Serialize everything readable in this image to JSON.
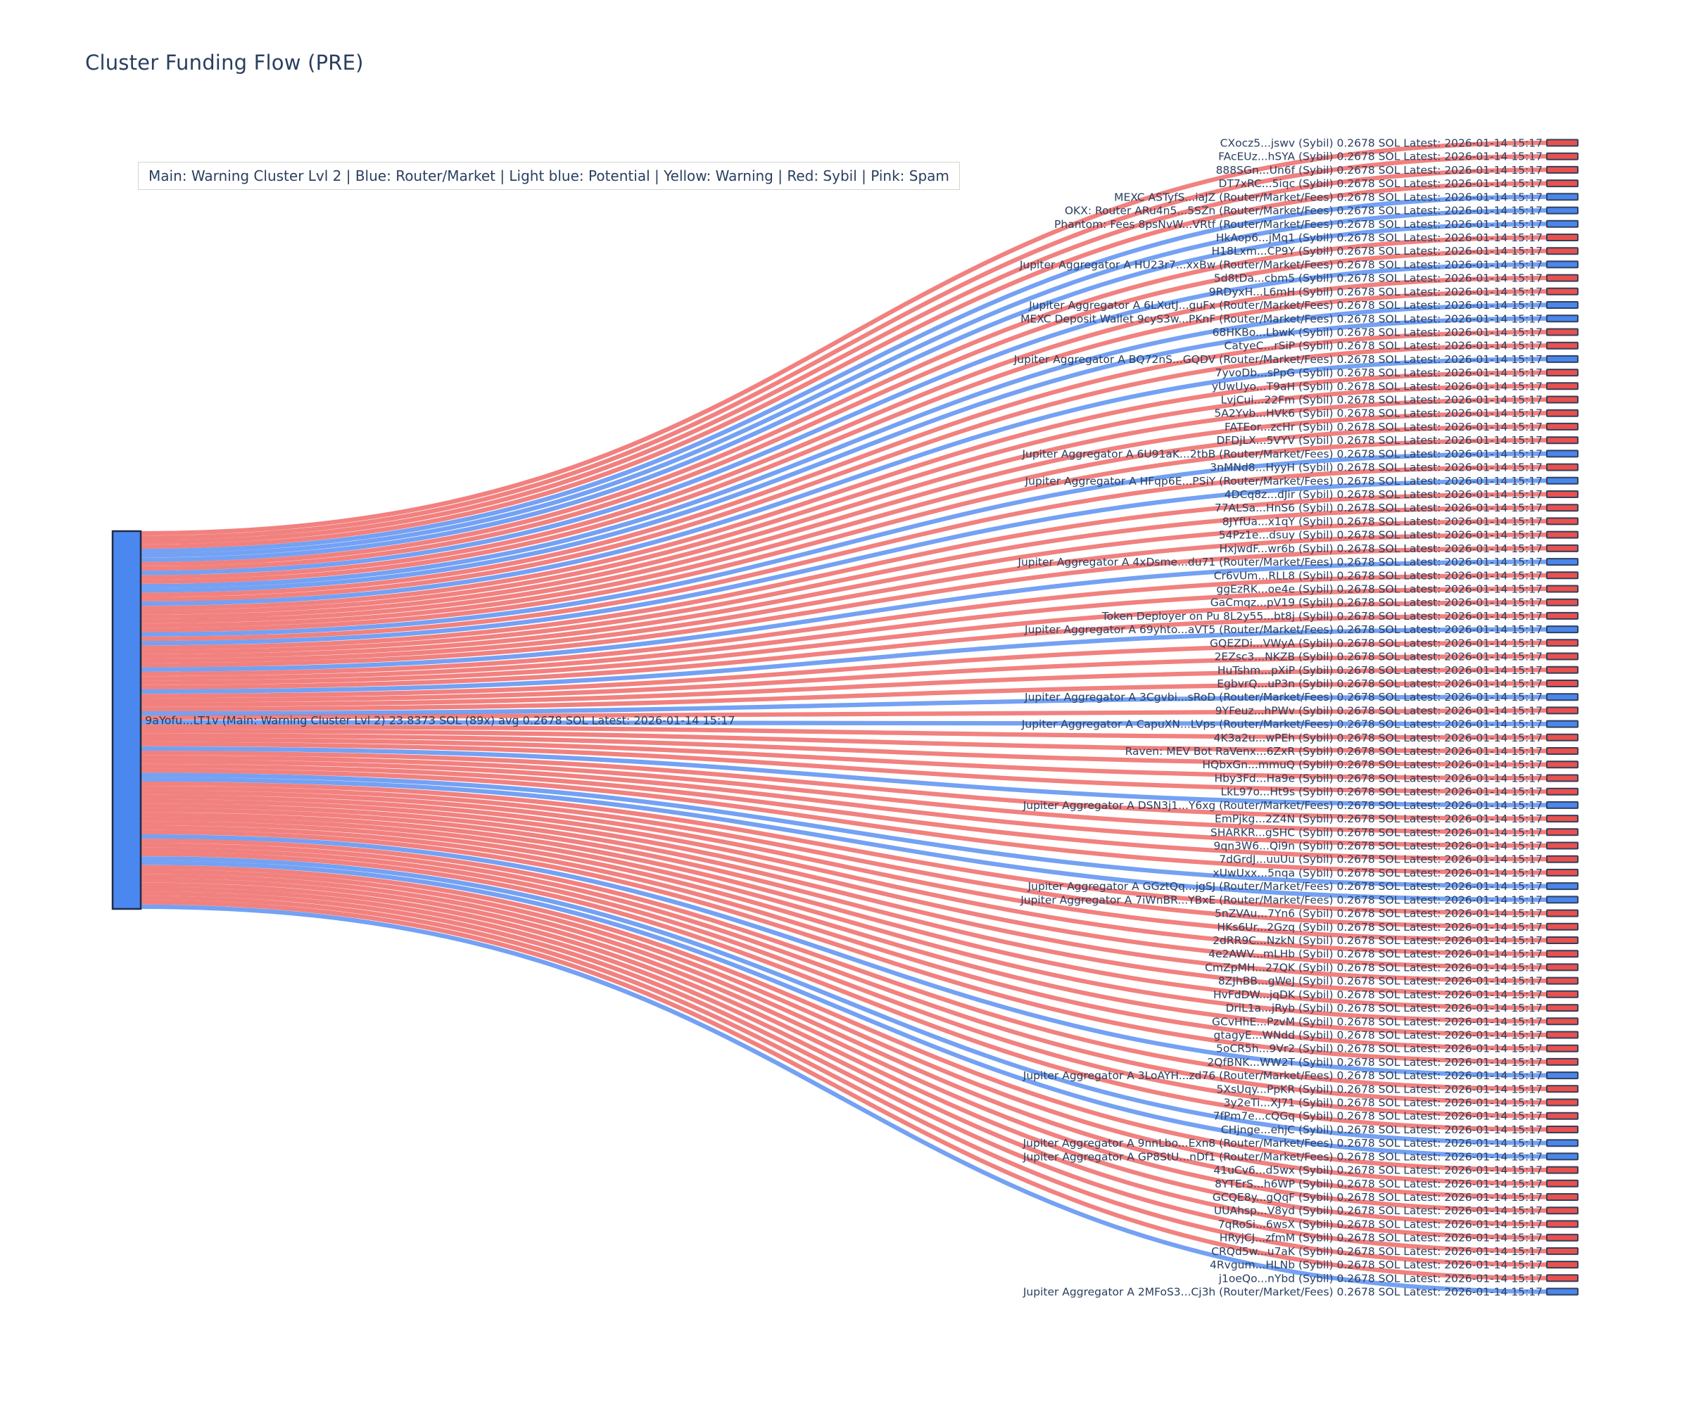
{
  "title": "Cluster Funding Flow (PRE)",
  "legend": "Main: Warning Cluster Lvl 2  |  Blue: Router/Market | Light blue: Potential | Yellow: Warning | Red: Sybil | Pink: Spam",
  "colors": {
    "main_node": "#4a87ee",
    "node_border": "#32415c",
    "sybil_node": "#e9514e",
    "router_node": "#4a86ec",
    "sybil_link": "rgba(235,80,77,0.72)",
    "router_link": "rgba(77,135,240,0.78)",
    "label": "#2a3f5f"
  },
  "chart_data": {
    "type": "sankey",
    "title": "Cluster Funding Flow (PRE)",
    "legend_note": "Main: Warning Cluster Lvl 2  |  Blue: Router/Market | Light blue: Potential | Yellow: Warning | Red: Sybil | Pink: Spam",
    "amount_sol": "0.2678",
    "latest": "2026-01-14 15:17",
    "source": {
      "name": "9aYofu...LT1v",
      "type": "Main: Warning Cluster Lvl 2",
      "total_sol": "23.8373",
      "tx_count": "89x",
      "avg_sol": "0.2678",
      "category": "main"
    },
    "destinations": [
      {
        "name": "CXocz5...jswv",
        "type": "Sybil",
        "category": "sybil"
      },
      {
        "name": "FAcEUz...hSYA",
        "type": "Sybil",
        "category": "sybil"
      },
      {
        "name": "888SGn...Un6f",
        "type": "Sybil",
        "category": "sybil"
      },
      {
        "name": "DT7xRC...5iqc",
        "type": "Sybil",
        "category": "sybil"
      },
      {
        "name": "MEXC ASTyfS...iaJZ",
        "type": "Router/Market/Fees",
        "category": "router"
      },
      {
        "name": "OKX: Router ARu4n5...5SZn",
        "type": "Router/Market/Fees",
        "category": "router"
      },
      {
        "name": "Phantom: Fees 8psNvW...VRtf",
        "type": "Router/Market/Fees",
        "category": "router"
      },
      {
        "name": "HkAop6...jMq1",
        "type": "Sybil",
        "category": "sybil"
      },
      {
        "name": "H18Lxm...CP9Y",
        "type": "Sybil",
        "category": "sybil"
      },
      {
        "name": "Jupiter Aggregator A HU23r7...xxBw",
        "type": "Router/Market/Fees",
        "category": "router"
      },
      {
        "name": "5d8tDa...cbm5",
        "type": "Sybil",
        "category": "sybil"
      },
      {
        "name": "9RDyxH...L6mH",
        "type": "Sybil",
        "category": "sybil"
      },
      {
        "name": "Jupiter Aggregator A 6LXutJ...guFx",
        "type": "Router/Market/Fees",
        "category": "router"
      },
      {
        "name": "MEXC Deposit Wallet 9cyS3w...PKnF",
        "type": "Router/Market/Fees",
        "category": "router"
      },
      {
        "name": "68HKBo...LbwK",
        "type": "Sybil",
        "category": "sybil"
      },
      {
        "name": "CatyeC...rSiP",
        "type": "Sybil",
        "category": "sybil"
      },
      {
        "name": "Jupiter Aggregator A BQ72nS...GQDV",
        "type": "Router/Market/Fees",
        "category": "router"
      },
      {
        "name": "7yvoDb...sPpG",
        "type": "Sybil",
        "category": "sybil"
      },
      {
        "name": "yUwUyo...T9aH",
        "type": "Sybil",
        "category": "sybil"
      },
      {
        "name": "LvjCui...22Fm",
        "type": "Sybil",
        "category": "sybil"
      },
      {
        "name": "5A2Yvb...HVk6",
        "type": "Sybil",
        "category": "sybil"
      },
      {
        "name": "FATEor...zcHr",
        "type": "Sybil",
        "category": "sybil"
      },
      {
        "name": "DFDjLX...5VYV",
        "type": "Sybil",
        "category": "sybil"
      },
      {
        "name": "Jupiter Aggregator A 6U91aK...2tbB",
        "type": "Router/Market/Fees",
        "category": "router"
      },
      {
        "name": "3nMNd8...HyyH",
        "type": "Sybil",
        "category": "sybil"
      },
      {
        "name": "Jupiter Aggregator A HFqp6E...PSiY",
        "type": "Router/Market/Fees",
        "category": "router"
      },
      {
        "name": "4DCq8z...dJir",
        "type": "Sybil",
        "category": "sybil"
      },
      {
        "name": "77ALSa...HnS6",
        "type": "Sybil",
        "category": "sybil"
      },
      {
        "name": "8JYfUa...x1qY",
        "type": "Sybil",
        "category": "sybil"
      },
      {
        "name": "54Pz1e...dsuy",
        "type": "Sybil",
        "category": "sybil"
      },
      {
        "name": "HxjwdF...wr6b",
        "type": "Sybil",
        "category": "sybil"
      },
      {
        "name": "Jupiter Aggregator A 4xDsme...du71",
        "type": "Router/Market/Fees",
        "category": "router"
      },
      {
        "name": "Cr6vUm...RLL8",
        "type": "Sybil",
        "category": "sybil"
      },
      {
        "name": "ggEzRK...oe4e",
        "type": "Sybil",
        "category": "sybil"
      },
      {
        "name": "GaCmqz...pV19",
        "type": "Sybil",
        "category": "sybil"
      },
      {
        "name": "Token Deployer on Pu 8L2y55...bt8j",
        "type": "Sybil",
        "category": "sybil"
      },
      {
        "name": "Jupiter Aggregator A 69yhto...aVT5",
        "type": "Router/Market/Fees",
        "category": "router"
      },
      {
        "name": "GQEZDi...VWyA",
        "type": "Sybil",
        "category": "sybil"
      },
      {
        "name": "2EZsc3...NKZB",
        "type": "Sybil",
        "category": "sybil"
      },
      {
        "name": "HuTshm...pXiP",
        "type": "Sybil",
        "category": "sybil"
      },
      {
        "name": "EgbvrQ...uP3n",
        "type": "Sybil",
        "category": "sybil"
      },
      {
        "name": "Jupiter Aggregator A 3Cgvbi...sRoD",
        "type": "Router/Market/Fees",
        "category": "router"
      },
      {
        "name": "9YFeuz...hPWv",
        "type": "Sybil",
        "category": "sybil"
      },
      {
        "name": "Jupiter Aggregator A CapuXN...LVps",
        "type": "Router/Market/Fees",
        "category": "router"
      },
      {
        "name": "4K3a2u...wPEh",
        "type": "Sybil",
        "category": "sybil"
      },
      {
        "name": "Raven: MEV Bot RaVenx...6ZxR",
        "type": "Sybil",
        "category": "sybil"
      },
      {
        "name": "HQbxGn...mmuQ",
        "type": "Sybil",
        "category": "sybil"
      },
      {
        "name": "Hby3Fd...Ha9e",
        "type": "Sybil",
        "category": "sybil"
      },
      {
        "name": "LkL97o...Ht9s",
        "type": "Sybil",
        "category": "sybil"
      },
      {
        "name": "Jupiter Aggregator A DSN3j1...Y6xg",
        "type": "Router/Market/Fees",
        "category": "router"
      },
      {
        "name": "EmPjkg...2Z4N",
        "type": "Sybil",
        "category": "sybil"
      },
      {
        "name": "SHARKR...gSHC",
        "type": "Sybil",
        "category": "sybil"
      },
      {
        "name": "9qn3W6...Qi9n",
        "type": "Sybil",
        "category": "sybil"
      },
      {
        "name": "7dGrdJ...uuUu",
        "type": "Sybil",
        "category": "sybil"
      },
      {
        "name": "xUwUxx...5nqa",
        "type": "Sybil",
        "category": "sybil"
      },
      {
        "name": "Jupiter Aggregator A GGztQq...jgSJ",
        "type": "Router/Market/Fees",
        "category": "router"
      },
      {
        "name": "Jupiter Aggregator A 7iWnBR...YBxE",
        "type": "Router/Market/Fees",
        "category": "router"
      },
      {
        "name": "5nZVAu...7Yn6",
        "type": "Sybil",
        "category": "sybil"
      },
      {
        "name": "HKs6Ur...2Gzq",
        "type": "Sybil",
        "category": "sybil"
      },
      {
        "name": "2dRR9C...NzkN",
        "type": "Sybil",
        "category": "sybil"
      },
      {
        "name": "4e2AWV...mLHb",
        "type": "Sybil",
        "category": "sybil"
      },
      {
        "name": "CmZpMH...27QK",
        "type": "Sybil",
        "category": "sybil"
      },
      {
        "name": "8ZJhBB...gWeJ",
        "type": "Sybil",
        "category": "sybil"
      },
      {
        "name": "HvFdDW...jqDK",
        "type": "Sybil",
        "category": "sybil"
      },
      {
        "name": "DriL1a...jRyb",
        "type": "Sybil",
        "category": "sybil"
      },
      {
        "name": "GCvHhE...PzvM",
        "type": "Sybil",
        "category": "sybil"
      },
      {
        "name": "gtagyE...WNdd",
        "type": "Sybil",
        "category": "sybil"
      },
      {
        "name": "5oCR5h...9Vr2",
        "type": "Sybil",
        "category": "sybil"
      },
      {
        "name": "2QfBNK...WW2T",
        "type": "Sybil",
        "category": "sybil"
      },
      {
        "name": "Jupiter Aggregator A 3LoAYH...zd76",
        "type": "Router/Market/Fees",
        "category": "router"
      },
      {
        "name": "5XsUqy...PpKR",
        "type": "Sybil",
        "category": "sybil"
      },
      {
        "name": "3y2eTi...XJ71",
        "type": "Sybil",
        "category": "sybil"
      },
      {
        "name": "7fPm7e...cQGq",
        "type": "Sybil",
        "category": "sybil"
      },
      {
        "name": "CHjnge...ehjC",
        "type": "Sybil",
        "category": "sybil"
      },
      {
        "name": "Jupiter Aggregator A 9nnLbo...Exn8",
        "type": "Router/Market/Fees",
        "category": "router"
      },
      {
        "name": "Jupiter Aggregator A GP8StU...nDf1",
        "type": "Router/Market/Fees",
        "category": "router"
      },
      {
        "name": "41uCv6...d5wx",
        "type": "Sybil",
        "category": "sybil"
      },
      {
        "name": "8YTErS...h6WP",
        "type": "Sybil",
        "category": "sybil"
      },
      {
        "name": "GCQE8y...gQqF",
        "type": "Sybil",
        "category": "sybil"
      },
      {
        "name": "UUAhsp...V8yd",
        "type": "Sybil",
        "category": "sybil"
      },
      {
        "name": "7qRoSi...6wsX",
        "type": "Sybil",
        "category": "sybil"
      },
      {
        "name": "HRyjCJ...zfmM",
        "type": "Sybil",
        "category": "sybil"
      },
      {
        "name": "CRQd5w...u7aK",
        "type": "Sybil",
        "category": "sybil"
      },
      {
        "name": "4Rvgum...HLNb",
        "type": "Sybil",
        "category": "sybil"
      },
      {
        "name": "j1oeQo...nYbd",
        "type": "Sybil",
        "category": "sybil"
      },
      {
        "name": "Jupiter Aggregator A 2MFoS3...Cj3h",
        "type": "Router/Market/Fees",
        "category": "router"
      }
    ]
  }
}
